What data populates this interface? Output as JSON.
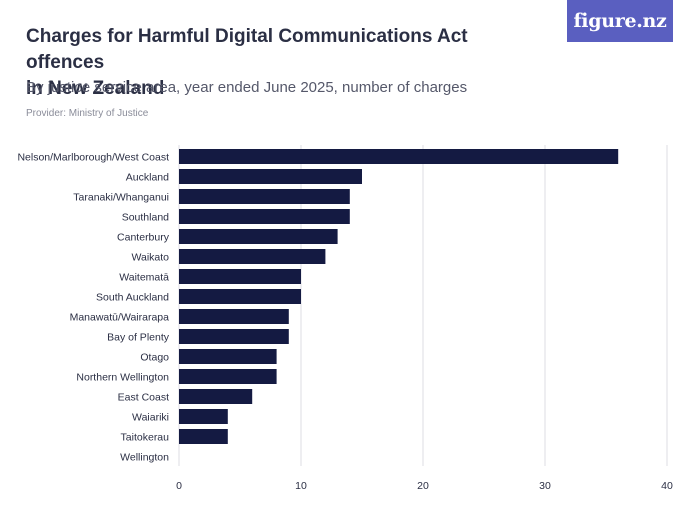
{
  "header": {
    "title_line1": "Charges for Harmful Digital Communications Act offences",
    "title_line2": "in New Zealand",
    "subtitle": "By justice service area, year ended June 2025, number of charges",
    "provider": "Provider: Ministry of Justice"
  },
  "logo": {
    "text": "figure.nz"
  },
  "colors": {
    "bar": "#141a42",
    "logo_bg": "#5a5fc0"
  },
  "chart_data": {
    "type": "bar",
    "orientation": "horizontal",
    "categories": [
      "Nelson/Marlborough/West Coast",
      "Auckland",
      "Taranaki/Whanganui",
      "Southland",
      "Canterbury",
      "Waikato",
      "Waitematā",
      "South Auckland",
      "Manawatū/Wairarapa",
      "Bay of Plenty",
      "Otago",
      "Northern Wellington",
      "East Coast",
      "Waiariki",
      "Taitokerau",
      "Wellington"
    ],
    "values": [
      36,
      15,
      14,
      14,
      13,
      12,
      10,
      10,
      9,
      9,
      8,
      8,
      6,
      4,
      4,
      0
    ],
    "xlim": [
      0,
      40
    ],
    "xticks": [
      0,
      10,
      20,
      30,
      40
    ],
    "grid": true
  }
}
